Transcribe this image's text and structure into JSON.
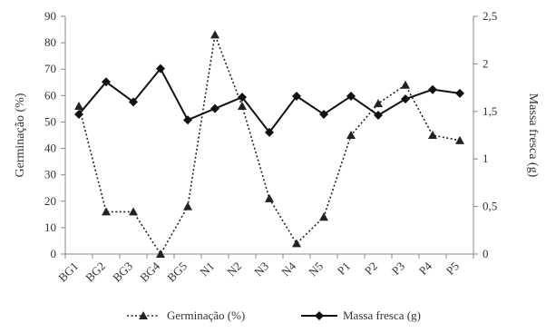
{
  "chart_data": {
    "type": "line",
    "categories": [
      "BG1",
      "BG2",
      "BG3",
      "BG4",
      "BG5",
      "N1",
      "N2",
      "N3",
      "N4",
      "N5",
      "P1",
      "P2",
      "P3",
      "P4",
      "P5"
    ],
    "series": [
      {
        "name": "Germinação (%)",
        "axis": "left",
        "style": "dotted",
        "marker": "triangle",
        "color": "#222222",
        "values": [
          56,
          16,
          16,
          0,
          18,
          83,
          56,
          21,
          4,
          14,
          45,
          57,
          64,
          45,
          43
        ]
      },
      {
        "name": "Massa fresca (g)",
        "axis": "right",
        "style": "solid",
        "marker": "diamond",
        "color": "#111111",
        "values": [
          1.47,
          1.81,
          1.6,
          1.95,
          1.41,
          1.53,
          1.65,
          1.28,
          1.66,
          1.47,
          1.66,
          1.46,
          1.63,
          1.73,
          1.69
        ]
      }
    ],
    "ylabel": "Germinação (%)",
    "ylabel_right": "Massa fresca (g)",
    "ylim": [
      0,
      90
    ],
    "ylim_right": [
      0,
      2.5
    ],
    "yticks": [
      "0",
      "10",
      "20",
      "30",
      "40",
      "50",
      "60",
      "70",
      "80",
      "90"
    ],
    "yticks_right": [
      "0",
      "0,5",
      "1",
      "1,5",
      "2",
      "2,5"
    ],
    "grid": false,
    "legend_position": "bottom"
  }
}
